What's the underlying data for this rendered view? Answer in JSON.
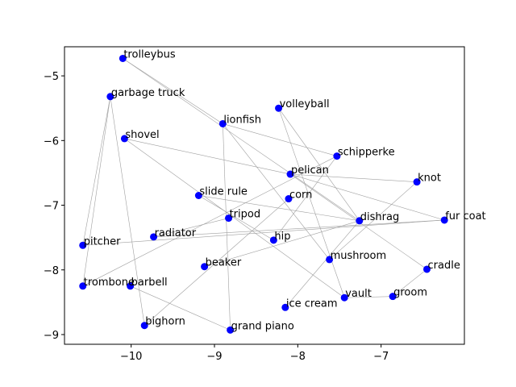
{
  "chart_data": {
    "type": "scatter",
    "title": "",
    "xlabel": "",
    "ylabel": "",
    "xlim": [
      -10.8,
      -6.0
    ],
    "ylim": [
      -9.15,
      -4.55
    ],
    "x_ticks": [
      -10,
      -9,
      -8,
      -7
    ],
    "y_ticks": [
      -9,
      -8,
      -7,
      -6,
      -5
    ],
    "x_tick_labels": [
      "−10",
      "−9",
      "−8",
      "−7"
    ],
    "y_tick_labels": [
      "−9",
      "−8",
      "−7",
      "−6",
      "−5"
    ],
    "grid": false,
    "point_color": "#0000ff",
    "edge_color": "#a0a0a0",
    "points": [
      {
        "label": "trolleybus",
        "x": -10.1,
        "y": -4.73
      },
      {
        "label": "garbage truck",
        "x": -10.25,
        "y": -5.32
      },
      {
        "label": "shovel",
        "x": -10.08,
        "y": -5.97
      },
      {
        "label": "lionfish",
        "x": -8.9,
        "y": -5.74
      },
      {
        "label": "volleyball",
        "x": -8.23,
        "y": -5.5
      },
      {
        "label": "schipperke",
        "x": -7.53,
        "y": -6.24
      },
      {
        "label": "knot",
        "x": -6.57,
        "y": -6.64
      },
      {
        "label": "pelican",
        "x": -8.09,
        "y": -6.52
      },
      {
        "label": "slide rule",
        "x": -9.19,
        "y": -6.85
      },
      {
        "label": "corn",
        "x": -8.11,
        "y": -6.9
      },
      {
        "label": "fur coat",
        "x": -6.24,
        "y": -7.23
      },
      {
        "label": "dishrag",
        "x": -7.26,
        "y": -7.24
      },
      {
        "label": "tripod",
        "x": -8.83,
        "y": -7.2
      },
      {
        "label": "radiator",
        "x": -9.73,
        "y": -7.49
      },
      {
        "label": "pitcher",
        "x": -10.58,
        "y": -7.62
      },
      {
        "label": "hip",
        "x": -8.29,
        "y": -7.54
      },
      {
        "label": "mushroom",
        "x": -7.62,
        "y": -7.84
      },
      {
        "label": "cradle",
        "x": -6.45,
        "y": -7.99
      },
      {
        "label": "beaker",
        "x": -9.12,
        "y": -7.95
      },
      {
        "label": "trombone",
        "x": -10.58,
        "y": -8.25
      },
      {
        "label": "barbell",
        "x": -10.01,
        "y": -8.25
      },
      {
        "label": "vault",
        "x": -7.44,
        "y": -8.43
      },
      {
        "label": "groom",
        "x": -6.86,
        "y": -8.41
      },
      {
        "label": "ice cream",
        "x": -8.15,
        "y": -8.58
      },
      {
        "label": "bighorn",
        "x": -9.84,
        "y": -8.86
      },
      {
        "label": "grand piano",
        "x": -8.81,
        "y": -8.93
      }
    ],
    "edges": [
      [
        "trolleybus",
        "lionfish"
      ],
      [
        "trolleybus",
        "dishrag"
      ],
      [
        "garbage truck",
        "pitcher"
      ],
      [
        "garbage truck",
        "bighorn"
      ],
      [
        "garbage truck",
        "trombone"
      ],
      [
        "shovel",
        "pelican"
      ],
      [
        "shovel",
        "vault"
      ],
      [
        "lionfish",
        "schipperke"
      ],
      [
        "lionfish",
        "grand piano"
      ],
      [
        "lionfish",
        "mushroom"
      ],
      [
        "volleyball",
        "dishrag"
      ],
      [
        "volleyball",
        "vault"
      ],
      [
        "schipperke",
        "hip"
      ],
      [
        "schipperke",
        "trombone"
      ],
      [
        "knot",
        "pelican"
      ],
      [
        "knot",
        "mushroom"
      ],
      [
        "pelican",
        "fur coat"
      ],
      [
        "pelican",
        "cradle"
      ],
      [
        "slide rule",
        "dishrag"
      ],
      [
        "slide rule",
        "hip"
      ],
      [
        "corn",
        "bighorn"
      ],
      [
        "fur coat",
        "radiator"
      ],
      [
        "fur coat",
        "pitcher"
      ],
      [
        "dishrag",
        "beaker"
      ],
      [
        "dishrag",
        "ice cream"
      ],
      [
        "radiator",
        "tripod"
      ],
      [
        "barbell",
        "grand piano"
      ],
      [
        "vault",
        "groom"
      ],
      [
        "groom",
        "cradle"
      ]
    ]
  }
}
